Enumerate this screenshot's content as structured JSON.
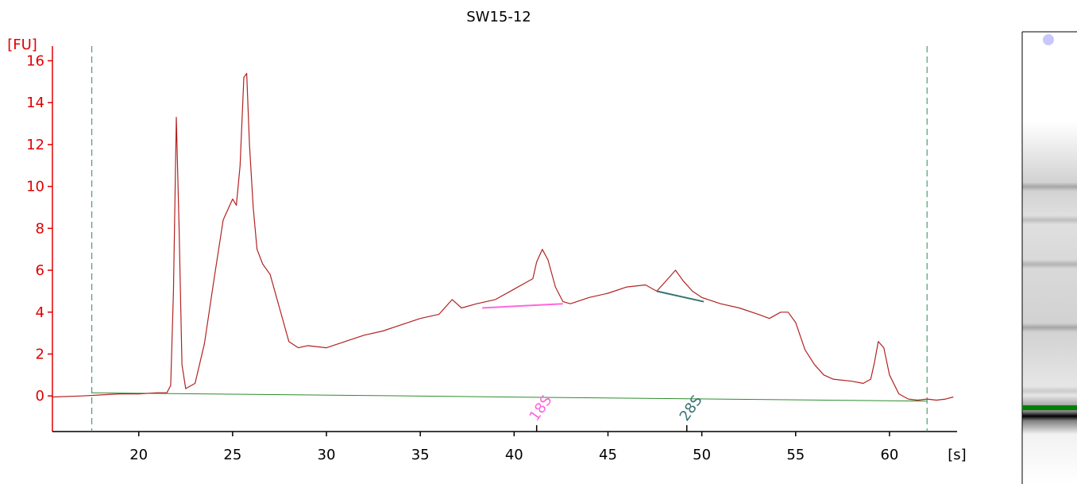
{
  "chart_data": {
    "type": "line",
    "title": "SW15-12",
    "ylabel": "[FU]",
    "xlabel": "[s]",
    "xlim": [
      15.4,
      63.6
    ],
    "ylim": [
      -1.7,
      16.7
    ],
    "xticks": [
      20,
      25,
      30,
      35,
      40,
      45,
      50,
      55,
      60
    ],
    "yticks": [
      0,
      2,
      4,
      6,
      8,
      10,
      12,
      14,
      16
    ],
    "grid": false,
    "marker_lines": [
      17.5,
      62.0
    ],
    "baseline": {
      "x": [
        17.5,
        62.0
      ],
      "y": [
        0.15,
        -0.25
      ]
    },
    "annotations": [
      {
        "label": "18S",
        "color": "#ff66dd",
        "x": 41.2,
        "segment": {
          "x": [
            38.3,
            42.6
          ],
          "y": [
            4.2,
            4.4
          ]
        }
      },
      {
        "label": "28S",
        "color": "#3a7373",
        "x": 49.2,
        "segment": {
          "x": [
            47.6,
            50.1
          ],
          "y": [
            5.0,
            4.5
          ]
        }
      }
    ],
    "series": [
      {
        "color": "#b22222",
        "x": [
          15.4,
          17.0,
          18.0,
          19.0,
          20.0,
          21.0,
          21.5,
          21.7,
          21.85,
          22.0,
          22.15,
          22.3,
          22.5,
          23.0,
          23.5,
          24.0,
          24.5,
          25.0,
          25.2,
          25.4,
          25.6,
          25.75,
          25.9,
          26.1,
          26.3,
          26.6,
          27.0,
          27.5,
          28.0,
          28.5,
          29.0,
          30.0,
          31.0,
          32.0,
          33.0,
          34.0,
          35.0,
          36.0,
          36.7,
          37.2,
          38.0,
          39.0,
          40.0,
          40.6,
          41.0,
          41.2,
          41.5,
          41.8,
          42.2,
          42.6,
          43.0,
          44.0,
          45.0,
          46.0,
          47.0,
          47.6,
          48.2,
          48.6,
          49.0,
          49.5,
          50.0,
          51.0,
          52.0,
          53.0,
          53.6,
          54.2,
          54.6,
          55.0,
          55.5,
          56.0,
          56.5,
          57.0,
          58.0,
          58.6,
          59.0,
          59.2,
          59.4,
          59.7,
          60.0,
          60.5,
          61.0,
          61.5,
          62.0,
          62.5,
          63.0,
          63.4
        ],
        "y": [
          -0.05,
          0.0,
          0.05,
          0.1,
          0.1,
          0.15,
          0.15,
          0.5,
          5.0,
          13.3,
          8.0,
          1.5,
          0.35,
          0.6,
          2.5,
          5.5,
          8.4,
          9.4,
          9.1,
          11.0,
          15.2,
          15.4,
          12.0,
          9.0,
          7.0,
          6.3,
          5.8,
          4.2,
          2.6,
          2.3,
          2.4,
          2.3,
          2.6,
          2.9,
          3.1,
          3.4,
          3.7,
          3.9,
          4.6,
          4.2,
          4.4,
          4.6,
          5.1,
          5.4,
          5.6,
          6.4,
          7.0,
          6.5,
          5.2,
          4.5,
          4.4,
          4.7,
          4.9,
          5.2,
          5.3,
          5.0,
          5.6,
          6.0,
          5.5,
          5.0,
          4.7,
          4.4,
          4.2,
          3.9,
          3.7,
          4.0,
          4.0,
          3.5,
          2.2,
          1.5,
          1.0,
          0.8,
          0.7,
          0.6,
          0.8,
          1.6,
          2.6,
          2.3,
          1.0,
          0.1,
          -0.15,
          -0.2,
          -0.15,
          -0.2,
          -0.15,
          -0.05
        ]
      }
    ]
  },
  "gel_lane": {
    "lane_border_color": "#000000",
    "marker_line_color": "#008000",
    "bands": [
      {
        "position": 0.275,
        "intensity": 0.35
      },
      {
        "position": 0.38,
        "intensity": 0.25
      },
      {
        "position": 0.52,
        "intensity": 0.3
      },
      {
        "position": 0.72,
        "intensity": 0.35
      },
      {
        "position": 0.92,
        "intensity": 0.2
      },
      {
        "position": 1.0,
        "intensity": 1.0
      }
    ],
    "dye_dot_color": "#c8c8ff"
  }
}
